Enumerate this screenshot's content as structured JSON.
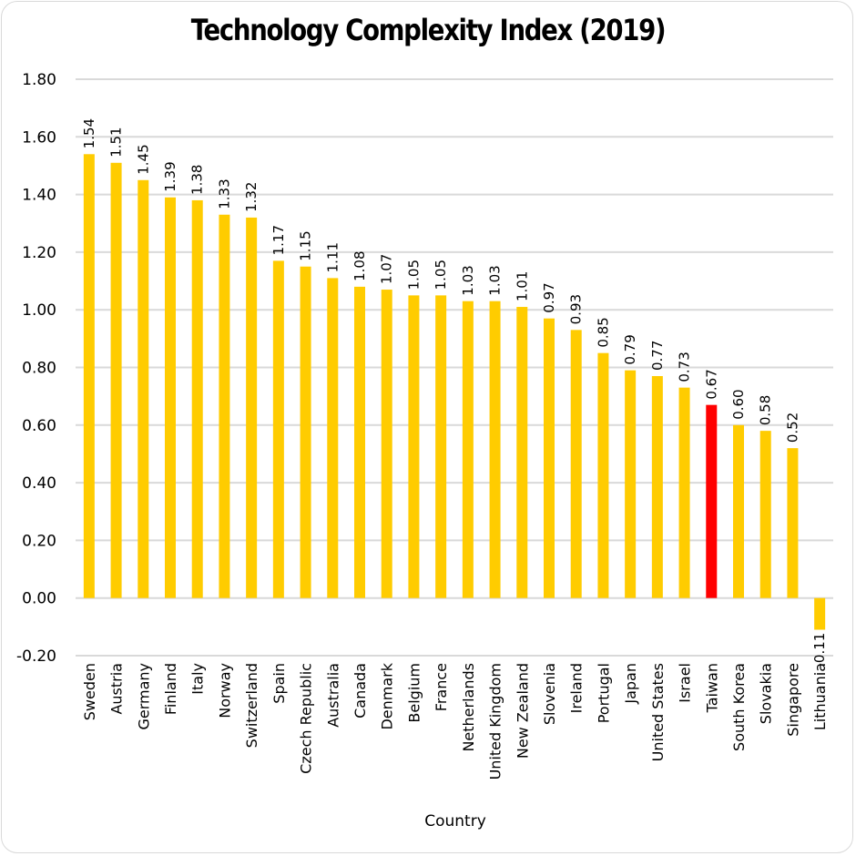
{
  "chart_data": {
    "type": "bar",
    "title": "Technology Complexity Index (2019)",
    "xlabel": "Country",
    "ylabel": "",
    "ylim": [
      -0.2,
      1.8
    ],
    "yticks": [
      "1.80",
      "1.60",
      "1.40",
      "1.20",
      "1.00",
      "0.80",
      "0.60",
      "0.40",
      "0.20",
      "0.00",
      "-0.20"
    ],
    "ytick_values": [
      1.8,
      1.6,
      1.4,
      1.2,
      1.0,
      0.8,
      0.6,
      0.4,
      0.2,
      0.0,
      -0.2
    ],
    "grid": true,
    "categories": [
      "Sweden",
      "Austria",
      "Germany",
      "Finland",
      "Italy",
      "Norway",
      "Switzerland",
      "Spain",
      "Czech Republic",
      "Australia",
      "Canada",
      "Denmark",
      "Belgium",
      "France",
      "Netherlands",
      "United Kingdom",
      "New Zealand",
      "Slovenia",
      "Ireland",
      "Portugal",
      "Japan",
      "United States",
      "Israel",
      "Taiwan",
      "South Korea",
      "Slovakia",
      "Singapore",
      "Lithuania"
    ],
    "values": [
      1.54,
      1.51,
      1.45,
      1.39,
      1.38,
      1.33,
      1.32,
      1.17,
      1.15,
      1.11,
      1.08,
      1.07,
      1.05,
      1.05,
      1.03,
      1.03,
      1.01,
      0.97,
      0.93,
      0.85,
      0.79,
      0.77,
      0.73,
      0.67,
      0.6,
      0.58,
      0.52,
      -0.11
    ],
    "labels": [
      "1.54",
      "1.51",
      "1.45",
      "1.39",
      "1.38",
      "1.33",
      "1.32",
      "1.17",
      "1.15",
      "1.11",
      "1.08",
      "1.07",
      "1.05",
      "1.05",
      "1.03",
      "1.03",
      "1.01",
      "0.97",
      "0.93",
      "0.85",
      "0.79",
      "0.77",
      "0.73",
      "0.67",
      "0.60",
      "0.58",
      "0.52",
      "-0.11"
    ],
    "highlight": "Taiwan",
    "colors": {
      "bar": "#FFCC00",
      "highlight": "#FF0000",
      "grid": "#D9D9D9"
    },
    "legend": "none"
  }
}
